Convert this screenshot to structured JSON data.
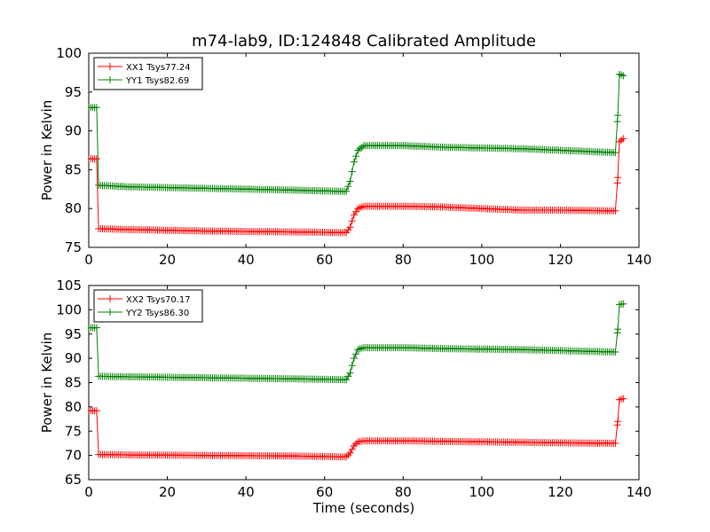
{
  "figure": {
    "title": "m74-lab9, ID:124848 Calibrated Amplitude"
  },
  "chart_data": [
    {
      "type": "line",
      "title": "m74-lab9, ID:124848 Calibrated Amplitude",
      "xlabel": "",
      "ylabel": "Power in Kelvin",
      "xlim": [
        0,
        140
      ],
      "ylim": [
        75,
        100
      ],
      "xticks": [
        "0",
        "20",
        "40",
        "60",
        "80",
        "100",
        "120",
        "140"
      ],
      "yticks": [
        "75",
        "80",
        "85",
        "90",
        "95",
        "100"
      ],
      "grid": false,
      "legend_position": "top-left",
      "series": [
        {
          "name": "XX1 Tsys77.24",
          "color": "#ff0000",
          "marker": "plus",
          "breakpoints": [
            [
              0,
              86.4
            ],
            [
              2,
              86.4
            ],
            [
              2.5,
              77.4
            ],
            [
              10,
              77.3
            ],
            [
              30,
              77.1
            ],
            [
              50,
              77.0
            ],
            [
              65.5,
              76.9
            ],
            [
              66.5,
              77.6
            ],
            [
              67.5,
              79.2
            ],
            [
              68.5,
              80.0
            ],
            [
              70,
              80.3
            ],
            [
              80,
              80.3
            ],
            [
              90,
              80.2
            ],
            [
              100,
              80.0
            ],
            [
              110,
              79.8
            ],
            [
              120,
              79.8
            ],
            [
              134,
              79.7
            ],
            [
              134.6,
              84.0
            ],
            [
              135,
              88.6
            ],
            [
              136,
              89.0
            ]
          ]
        },
        {
          "name": "YY1 Tsys82.69",
          "color": "#008000",
          "marker": "plus",
          "breakpoints": [
            [
              0,
              93.0
            ],
            [
              2,
              93.0
            ],
            [
              2.5,
              83.0
            ],
            [
              10,
              82.8
            ],
            [
              30,
              82.6
            ],
            [
              50,
              82.4
            ],
            [
              65.5,
              82.2
            ],
            [
              66.5,
              83.5
            ],
            [
              67.5,
              86.0
            ],
            [
              68.5,
              87.5
            ],
            [
              70,
              88.1
            ],
            [
              80,
              88.1
            ],
            [
              90,
              87.9
            ],
            [
              100,
              87.8
            ],
            [
              110,
              87.7
            ],
            [
              120,
              87.5
            ],
            [
              134,
              87.2
            ],
            [
              134.6,
              92.0
            ],
            [
              135,
              97.3
            ],
            [
              136,
              97.1
            ]
          ]
        }
      ]
    },
    {
      "type": "line",
      "title": "",
      "xlabel": "Time (seconds)",
      "ylabel": "Power in Kelvin",
      "xlim": [
        0,
        140
      ],
      "ylim": [
        65,
        105
      ],
      "xticks": [
        "0",
        "20",
        "40",
        "60",
        "80",
        "100",
        "120",
        "140"
      ],
      "yticks": [
        "65",
        "70",
        "75",
        "80",
        "85",
        "90",
        "95",
        "100",
        "105"
      ],
      "grid": false,
      "legend_position": "top-left",
      "series": [
        {
          "name": "XX2 Tsys70.17",
          "color": "#ff0000",
          "marker": "plus",
          "breakpoints": [
            [
              0,
              79.2
            ],
            [
              2,
              79.2
            ],
            [
              2.5,
              70.2
            ],
            [
              10,
              70.1
            ],
            [
              30,
              70.0
            ],
            [
              50,
              69.9
            ],
            [
              65.5,
              69.7
            ],
            [
              66.5,
              70.5
            ],
            [
              67.5,
              72.0
            ],
            [
              68.5,
              72.8
            ],
            [
              70,
              73.0
            ],
            [
              80,
              73.0
            ],
            [
              90,
              72.9
            ],
            [
              100,
              72.8
            ],
            [
              110,
              72.7
            ],
            [
              120,
              72.6
            ],
            [
              134,
              72.5
            ],
            [
              134.6,
              77.0
            ],
            [
              135,
              81.5
            ],
            [
              136,
              81.7
            ]
          ]
        },
        {
          "name": "YY2 Tsys86.30",
          "color": "#008000",
          "marker": "plus",
          "breakpoints": [
            [
              0,
              96.3
            ],
            [
              2,
              96.3
            ],
            [
              2.5,
              86.3
            ],
            [
              10,
              86.2
            ],
            [
              30,
              86.0
            ],
            [
              50,
              85.8
            ],
            [
              65.5,
              85.6
            ],
            [
              66.5,
              87.0
            ],
            [
              67.5,
              90.0
            ],
            [
              68.5,
              91.8
            ],
            [
              70,
              92.2
            ],
            [
              80,
              92.2
            ],
            [
              90,
              92.0
            ],
            [
              100,
              91.9
            ],
            [
              110,
              91.8
            ],
            [
              120,
              91.6
            ],
            [
              134,
              91.3
            ],
            [
              134.6,
              96.0
            ],
            [
              135,
              101.1
            ],
            [
              136,
              101.2
            ]
          ]
        }
      ]
    }
  ]
}
